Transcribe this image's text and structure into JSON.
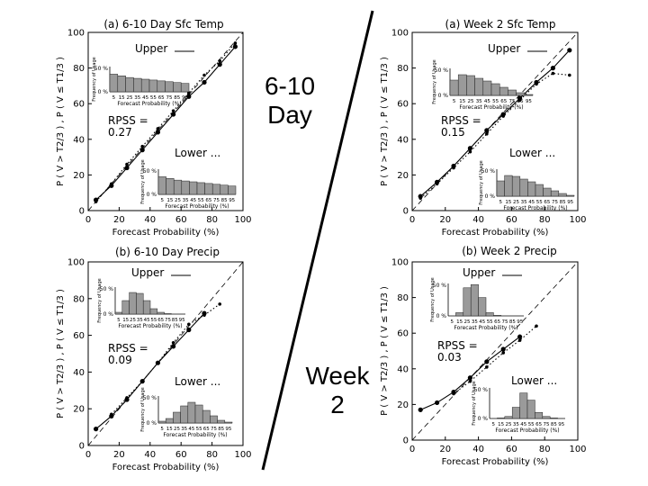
{
  "slide": {
    "label_610": [
      "6-10",
      "Day"
    ],
    "label_week2": [
      "Week",
      "2"
    ]
  },
  "colors": {
    "ink": "#000000",
    "hist_fill": "#9a9a9a",
    "background": "#ffffff"
  },
  "chart_data": [
    {
      "type": "line",
      "title": "(a) 6-10 Day Sfc Temp",
      "xlabel": "Forecast Probability (%)",
      "ylabel": "P ( V > T2/3 ) , P ( V ≤ T1/3 )",
      "xlim": [
        0,
        100
      ],
      "ylim": [
        0,
        100
      ],
      "x_ticks": [
        0,
        20,
        40,
        60,
        80,
        100
      ],
      "y_ticks": [
        0,
        20,
        40,
        60,
        80,
        100
      ],
      "rpss_label": "RPSS =",
      "rpss_value": "0.27",
      "legend": [
        {
          "name": "Upper",
          "style": "solid"
        },
        {
          "name": "Lower",
          "style": "dotted"
        }
      ],
      "series": [
        {
          "name": "Upper",
          "style": "solid",
          "x": [
            5,
            15,
            25,
            35,
            45,
            55,
            65,
            75,
            85,
            95
          ],
          "y": [
            6,
            14,
            24,
            34,
            44,
            54,
            64,
            72,
            82,
            92
          ]
        },
        {
          "name": "Lower",
          "style": "dotted",
          "x": [
            5,
            15,
            25,
            35,
            45,
            55,
            65,
            75,
            85,
            95
          ],
          "y": [
            5,
            15,
            26,
            36,
            46,
            56,
            66,
            76,
            84,
            94
          ]
        }
      ],
      "hist_upper": {
        "title": "Upper",
        "ylabel": "Frequency of Usage",
        "y_ticks": [
          "50 %",
          "0 %"
        ],
        "xlabel": "Forecast Probability (%)",
        "x_ticks": [
          5,
          15,
          25,
          35,
          45,
          55,
          65,
          75,
          85,
          95
        ],
        "values": [
          42,
          38,
          34,
          32,
          30,
          28,
          26,
          24,
          22,
          20
        ]
      },
      "hist_lower": {
        "title": "Lower ...",
        "ylabel": "Frequency of Usage",
        "y_ticks": [
          "50 %",
          "0 %"
        ],
        "xlabel": "Forecast Probability (%)",
        "x_ticks": [
          5,
          15,
          25,
          35,
          45,
          55,
          65,
          75,
          85,
          95
        ],
        "values": [
          42,
          38,
          34,
          32,
          30,
          28,
          26,
          24,
          22,
          20
        ]
      }
    },
    {
      "type": "line",
      "title": "(a) Week 2 Sfc Temp",
      "xlabel": "Forecast Probability (%)",
      "ylabel": "P ( V > T2/3 ) , P ( V ≤ T1/3 )",
      "xlim": [
        0,
        100
      ],
      "ylim": [
        0,
        100
      ],
      "x_ticks": [
        0,
        20,
        40,
        60,
        80,
        100
      ],
      "y_ticks": [
        0,
        20,
        40,
        60,
        80,
        100
      ],
      "rpss_label": "RPSS =",
      "rpss_value": "0.15",
      "legend": [
        {
          "name": "Upper",
          "style": "solid"
        },
        {
          "name": "Lower",
          "style": "dotted"
        }
      ],
      "series": [
        {
          "name": "Upper",
          "style": "solid",
          "x": [
            5,
            15,
            25,
            35,
            45,
            55,
            65,
            75,
            85,
            95
          ],
          "y": [
            8,
            16,
            25,
            35,
            45,
            54,
            63,
            72,
            80,
            90
          ]
        },
        {
          "name": "Lower",
          "style": "dotted",
          "x": [
            5,
            15,
            25,
            35,
            45,
            55,
            65,
            75,
            85,
            95
          ],
          "y": [
            7,
            15,
            24,
            33,
            43,
            53,
            62,
            71,
            77,
            76
          ]
        }
      ],
      "hist_upper": {
        "title": "Upper",
        "ylabel": "Frequency of Usage",
        "y_ticks": [
          "50 %",
          "0 %"
        ],
        "xlabel": "Forecast Probability (%)",
        "x_ticks": [
          5,
          15,
          25,
          35,
          45,
          55,
          65,
          75,
          85,
          95
        ],
        "values": [
          34,
          46,
          44,
          38,
          32,
          26,
          18,
          12,
          6,
          2
        ]
      },
      "hist_lower": {
        "title": "Lower ...",
        "ylabel": "Frequency of Usage",
        "y_ticks": [
          "50 %",
          "0 %"
        ],
        "xlabel": "Forecast Probability (%)",
        "x_ticks": [
          5,
          15,
          25,
          35,
          45,
          55,
          65,
          75,
          85,
          95
        ],
        "values": [
          34,
          46,
          44,
          38,
          32,
          26,
          18,
          12,
          6,
          2
        ]
      }
    },
    {
      "type": "line",
      "title": "(b) 6-10 Day Precip",
      "xlabel": "Forecast Probability (%)",
      "ylabel": "P ( V > T2/3 ) , P ( V ≤ T1/3 )",
      "xlim": [
        0,
        100
      ],
      "ylim": [
        0,
        100
      ],
      "x_ticks": [
        0,
        20,
        40,
        60,
        80,
        100
      ],
      "y_ticks": [
        0,
        20,
        40,
        60,
        80,
        100
      ],
      "rpss_label": "RPSS =",
      "rpss_value": "0.09",
      "legend": [
        {
          "name": "Upper",
          "style": "solid"
        },
        {
          "name": "Lower",
          "style": "dotted"
        }
      ],
      "series": [
        {
          "name": "Upper",
          "style": "solid",
          "x": [
            5,
            15,
            25,
            35,
            45,
            55,
            65,
            75
          ],
          "y": [
            9,
            16,
            25,
            35,
            45,
            54,
            63,
            72
          ]
        },
        {
          "name": "Lower",
          "style": "dotted",
          "x": [
            15,
            25,
            35,
            45,
            55,
            65,
            75,
            85
          ],
          "y": [
            17,
            26,
            35,
            45,
            56,
            66,
            71,
            77
          ]
        }
      ],
      "hist_upper": {
        "title": "Upper",
        "ylabel": "Frequency of Usage",
        "y_ticks": [
          "50 %",
          "0 %"
        ],
        "xlabel": "Forecast Probability (%)",
        "x_ticks": [
          5,
          15,
          25,
          35,
          45,
          55,
          65,
          75,
          85,
          95
        ],
        "values": [
          4,
          30,
          48,
          46,
          30,
          12,
          4,
          1,
          0,
          0
        ]
      },
      "hist_lower": {
        "title": "Lower ...",
        "ylabel": "Frequency of Usage",
        "y_ticks": [
          "50 %",
          "0 %"
        ],
        "xlabel": "Forecast Probability (%)",
        "x_ticks": [
          5,
          15,
          25,
          35,
          45,
          55,
          65,
          75,
          85,
          95
        ],
        "values": [
          4,
          10,
          24,
          38,
          46,
          40,
          28,
          16,
          6,
          2
        ]
      }
    },
    {
      "type": "line",
      "title": "(b) Week 2 Precip",
      "xlabel": "Forecast Probability (%)",
      "ylabel": "P ( V > T2/3 ) , P ( V ≤ T1/3 )",
      "xlim": [
        0,
        100
      ],
      "ylim": [
        0,
        100
      ],
      "x_ticks": [
        0,
        20,
        40,
        60,
        80,
        100
      ],
      "y_ticks": [
        0,
        20,
        40,
        60,
        80,
        100
      ],
      "rpss_label": "RPSS =",
      "rpss_value": "0.03",
      "legend": [
        {
          "name": "Upper",
          "style": "solid"
        },
        {
          "name": "Lower",
          "style": "dotted"
        }
      ],
      "series": [
        {
          "name": "Upper",
          "style": "solid",
          "x": [
            5,
            15,
            25,
            35,
            45,
            55,
            65
          ],
          "y": [
            17,
            21,
            27,
            35,
            44,
            51,
            58
          ]
        },
        {
          "name": "Lower",
          "style": "dotted",
          "x": [
            25,
            35,
            45,
            55,
            65,
            75
          ],
          "y": [
            26,
            33,
            41,
            49,
            56,
            64
          ]
        }
      ],
      "hist_upper": {
        "title": "Upper",
        "ylabel": "Frequency of Usage",
        "y_ticks": [
          "50 %",
          "0 %"
        ],
        "xlabel": "Forecast Probability (%)",
        "x_ticks": [
          5,
          15,
          25,
          35,
          45,
          55,
          65,
          75,
          85,
          95
        ],
        "values": [
          0,
          6,
          52,
          58,
          34,
          6,
          1,
          0,
          0,
          0
        ]
      },
      "hist_lower": {
        "title": "Lower ...",
        "ylabel": "Frequency of Usage",
        "y_ticks": [
          "50 %",
          "0 %"
        ],
        "xlabel": "Forecast Probability (%)",
        "x_ticks": [
          5,
          15,
          25,
          35,
          45,
          55,
          65,
          75,
          85,
          95
        ],
        "values": [
          0,
          1,
          4,
          22,
          50,
          36,
          12,
          4,
          1,
          0
        ]
      }
    }
  ]
}
